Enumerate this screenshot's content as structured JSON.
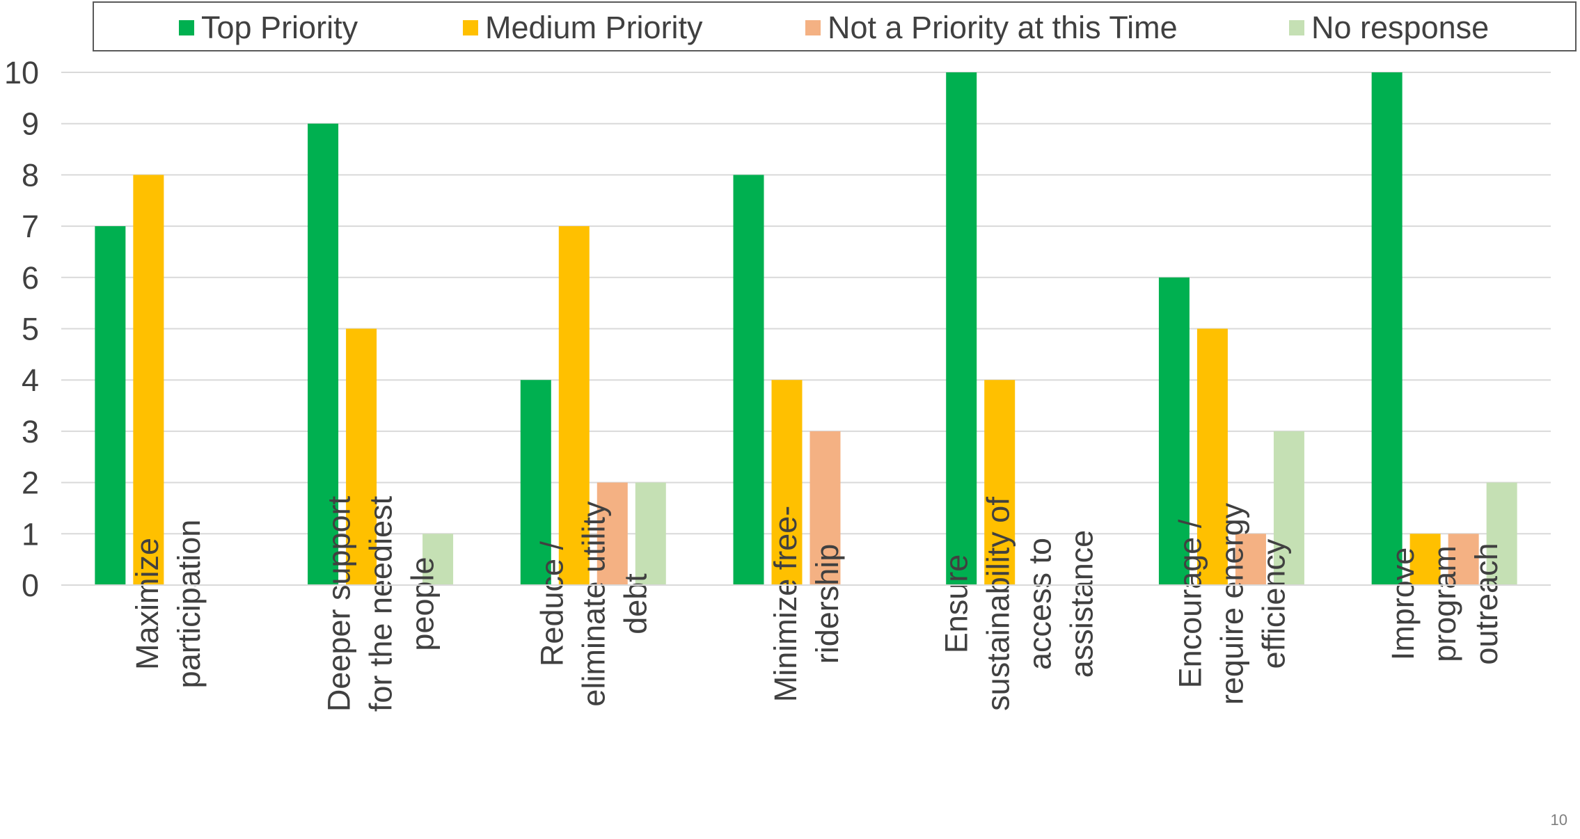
{
  "chart_data": {
    "type": "bar",
    "categories": [
      [
        "Maximize",
        "participation"
      ],
      [
        "Deeper support",
        "for the neediest",
        "people"
      ],
      [
        "Reduce /",
        "eliminate utility",
        "debt"
      ],
      [
        "Minimize free-",
        "ridership"
      ],
      [
        "Ensure",
        "sustainability of",
        "access to",
        "assistance"
      ],
      [
        "Encourage /",
        "require energy",
        "efficiency"
      ],
      [
        "Improve",
        "program",
        "outreach"
      ]
    ],
    "series": [
      {
        "name": "Top Priority",
        "color": "#00b050",
        "values": [
          7,
          9,
          4,
          8,
          10,
          6,
          10
        ]
      },
      {
        "name": "Medium Priority",
        "color": "#ffc000",
        "values": [
          8,
          5,
          7,
          4,
          4,
          5,
          1
        ]
      },
      {
        "name": "Not a Priority at this Time",
        "color": "#f4b183",
        "values": [
          0,
          0,
          2,
          3,
          0,
          1,
          1
        ]
      },
      {
        "name": "No response",
        "color": "#c5e0b4",
        "values": [
          0,
          1,
          2,
          0,
          0,
          3,
          2
        ]
      }
    ],
    "ylim": [
      0,
      10
    ],
    "yticks": [
      "0",
      "1",
      "2",
      "3",
      "4",
      "5",
      "6",
      "7",
      "8",
      "9",
      "10"
    ],
    "grid": true,
    "legend": "top"
  },
  "page_number": "10"
}
